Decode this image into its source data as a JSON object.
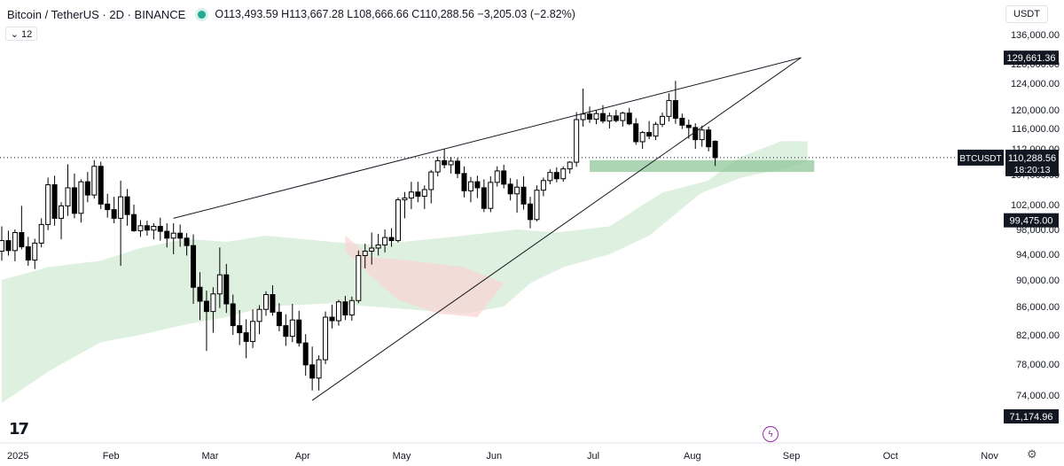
{
  "header": {
    "symbol": "Bitcoin / TetherUS · 2D · BINANCE",
    "ohlc": "O113,493.59 H113,667.28 L108,666.66 C110,288.56 −3,205.03 (−2.82%)",
    "indicator_badge": "⌄ 12",
    "currency_button": "USDT"
  },
  "colors": {
    "up_candle": "#ffffff",
    "down_candle": "#000000",
    "cloud_bull": "#c8e6c9",
    "cloud_bear": "#fbd3d3",
    "support_zone": "#8fc79a",
    "live_dot": "#22ab94",
    "event_icon": "#9c27b0"
  },
  "icons": [
    "tradingview-logo-icon",
    "settings-gear-icon",
    "flash-event-icon"
  ],
  "chart_data": {
    "type": "candlestick",
    "x_ticks": [
      "2025",
      "Feb",
      "Mar",
      "Apr",
      "May",
      "Jun",
      "Jul",
      "Aug",
      "Sep",
      "Oct",
      "Nov"
    ],
    "y_ticks": [
      "136,000.00",
      "128,000.00",
      "124,000.00",
      "120,000.00",
      "116,000.00",
      "112,000.00",
      "107,000.00",
      "102,000.00",
      "98,000.00",
      "94,000.00",
      "90,000.00",
      "86,000.00",
      "82,000.00",
      "78,000.00",
      "74,000.00"
    ],
    "y_ticks_values": [
      136000,
      128000,
      124000,
      120000,
      116000,
      112000,
      107000,
      102000,
      98000,
      94000,
      90000,
      86000,
      82000,
      78000,
      74000
    ],
    "ylim": [
      70000,
      138000
    ],
    "price_labels": [
      {
        "text": "129,661.36",
        "value": 129661.36
      },
      {
        "text": "99,475.00",
        "value": 99475
      },
      {
        "text": "71,174.96",
        "value": 71174.96
      }
    ],
    "last_price": {
      "symbol": "BTCUSDT",
      "value_text": "110,288.56",
      "countdown": "18:20:13",
      "value": 110288.56
    },
    "candles": [
      [
        94500,
        98500,
        93000,
        96200
      ],
      [
        96200,
        97800,
        93800,
        94600
      ],
      [
        94600,
        98000,
        92900,
        97500
      ],
      [
        97500,
        101800,
        94800,
        95200
      ],
      [
        95200,
        96800,
        92200,
        93100
      ],
      [
        93100,
        96500,
        91700,
        95800
      ],
      [
        95800,
        99800,
        95100,
        98800
      ],
      [
        98800,
        106500,
        97900,
        105300
      ],
      [
        105300,
        106800,
        98600,
        99800
      ],
      [
        99800,
        102400,
        96400,
        101800
      ],
      [
        101800,
        109000,
        100200,
        104800
      ],
      [
        104800,
        107200,
        99800,
        100600
      ],
      [
        100600,
        106200,
        99100,
        105800
      ],
      [
        105800,
        107500,
        102400,
        103600
      ],
      [
        103600,
        109800,
        103000,
        108600
      ],
      [
        108600,
        109500,
        101300,
        102100
      ],
      [
        102100,
        103800,
        99900,
        101200
      ],
      [
        101200,
        103300,
        99000,
        99800
      ],
      [
        99800,
        106000,
        92200,
        103300
      ],
      [
        103300,
        104600,
        98600,
        100400
      ],
      [
        100400,
        102000,
        97600,
        97800
      ],
      [
        97800,
        99500,
        96800,
        98600
      ],
      [
        98600,
        99400,
        97000,
        97900
      ],
      [
        97900,
        99000,
        96400,
        98500
      ],
      [
        98500,
        99900,
        96200,
        97700
      ],
      [
        97700,
        99000,
        95100,
        96600
      ],
      [
        96600,
        99000,
        94000,
        97400
      ],
      [
        97400,
        98800,
        95200,
        96600
      ],
      [
        96600,
        97400,
        93800,
        95400
      ],
      [
        95400,
        97200,
        86400,
        88900
      ],
      [
        88900,
        91200,
        84100,
        86800
      ],
      [
        86800,
        88400,
        79800,
        85300
      ],
      [
        85300,
        88900,
        82300,
        87900
      ],
      [
        87900,
        95100,
        85800,
        90800
      ],
      [
        90800,
        92500,
        85100,
        86400
      ],
      [
        86400,
        87800,
        82000,
        83300
      ],
      [
        83300,
        85500,
        80600,
        82300
      ],
      [
        82300,
        84200,
        78800,
        81100
      ],
      [
        81100,
        85600,
        80200,
        83900
      ],
      [
        83900,
        86200,
        82100,
        85600
      ],
      [
        85600,
        88300,
        84700,
        87800
      ],
      [
        87800,
        89200,
        84700,
        85200
      ],
      [
        85200,
        86500,
        82500,
        83300
      ],
      [
        83300,
        84900,
        80500,
        81800
      ],
      [
        81800,
        86400,
        81000,
        84100
      ],
      [
        84100,
        85400,
        80400,
        80900
      ],
      [
        80900,
        82100,
        76500,
        77900
      ],
      [
        77900,
        80400,
        74600,
        76200
      ],
      [
        76200,
        79200,
        74600,
        78600
      ],
      [
        78600,
        85300,
        78000,
        84500
      ],
      [
        84500,
        86300,
        82900,
        84000
      ],
      [
        84000,
        87000,
        83300,
        86700
      ],
      [
        86700,
        87600,
        84100,
        84800
      ],
      [
        84800,
        87500,
        84000,
        86900
      ],
      [
        86900,
        94600,
        86500,
        93800
      ],
      [
        93800,
        95700,
        91800,
        94500
      ],
      [
        94500,
        97500,
        92400,
        95000
      ],
      [
        95000,
        97300,
        93800,
        95500
      ],
      [
        95500,
        98000,
        94300,
        96700
      ],
      [
        96700,
        98200,
        95200,
        96200
      ],
      [
        96200,
        103200,
        95900,
        102800
      ],
      [
        102800,
        104100,
        99800,
        103100
      ],
      [
        103100,
        105800,
        101300,
        104100
      ],
      [
        104100,
        105800,
        102400,
        103400
      ],
      [
        103400,
        105200,
        101300,
        104500
      ],
      [
        104500,
        107900,
        102200,
        107500
      ],
      [
        107500,
        110500,
        106700,
        109700
      ],
      [
        109700,
        112000,
        108200,
        108900
      ],
      [
        108900,
        110400,
        107200,
        109600
      ],
      [
        109600,
        110200,
        106400,
        107200
      ],
      [
        107200,
        108600,
        103200,
        104300
      ],
      [
        104300,
        106600,
        102400,
        105800
      ],
      [
        105800,
        106800,
        103100,
        104800
      ],
      [
        104800,
        106200,
        100800,
        101400
      ],
      [
        101400,
        106700,
        100800,
        105700
      ],
      [
        105700,
        108600,
        105000,
        107700
      ],
      [
        107700,
        108900,
        104700,
        105400
      ],
      [
        105400,
        106400,
        102700,
        103800
      ],
      [
        103800,
        106200,
        100700,
        104900
      ],
      [
        104900,
        106700,
        101200,
        102100
      ],
      [
        102100,
        103300,
        98200,
        99600
      ],
      [
        99600,
        105200,
        99300,
        104400
      ],
      [
        104400,
        106500,
        103400,
        106000
      ],
      [
        106000,
        108000,
        105400,
        107400
      ],
      [
        107400,
        108400,
        105700,
        106300
      ],
      [
        106300,
        108600,
        105800,
        108100
      ],
      [
        108100,
        109600,
        107200,
        109400
      ],
      [
        109400,
        119500,
        108500,
        117900
      ],
      [
        117900,
        123200,
        116400,
        119100
      ],
      [
        119100,
        120500,
        117200,
        118000
      ],
      [
        118000,
        119900,
        116900,
        119200
      ],
      [
        119200,
        120700,
        117100,
        117600
      ],
      [
        117600,
        119400,
        116000,
        118700
      ],
      [
        118700,
        120000,
        117300,
        117700
      ],
      [
        117700,
        119600,
        116400,
        119300
      ],
      [
        119300,
        120300,
        116700,
        117000
      ],
      [
        117000,
        118200,
        112800,
        113400
      ],
      [
        113400,
        115500,
        112000,
        115200
      ],
      [
        115200,
        117600,
        113900,
        114500
      ],
      [
        114500,
        117400,
        113700,
        116900
      ],
      [
        116900,
        119400,
        116300,
        118600
      ],
      [
        118600,
        122500,
        117500,
        121400
      ],
      [
        121400,
        124500,
        117000,
        118200
      ],
      [
        118200,
        119200,
        115900,
        116700
      ],
      [
        116700,
        117900,
        114000,
        116200
      ],
      [
        116200,
        117100,
        112000,
        113800
      ],
      [
        113800,
        116600,
        112400,
        115700
      ],
      [
        115700,
        116400,
        111500,
        112400
      ],
      [
        113493.59,
        113667.28,
        108666.66,
        110288.56
      ]
    ],
    "cloud_a": [
      [
        0,
        90000
      ],
      [
        7,
        92000
      ],
      [
        15,
        93000
      ],
      [
        21,
        95000
      ],
      [
        28,
        96500
      ],
      [
        34,
        96000
      ],
      [
        40,
        97000
      ],
      [
        50,
        96000
      ],
      [
        56,
        95500
      ],
      [
        70,
        97000
      ],
      [
        78,
        98000
      ],
      [
        84,
        97500
      ],
      [
        92,
        98500
      ],
      [
        100,
        104000
      ],
      [
        107,
        106000
      ],
      [
        112,
        110500
      ],
      [
        118,
        113500
      ],
      [
        122,
        113500
      ]
    ],
    "cloud_b": [
      [
        0,
        73000
      ],
      [
        7,
        77000
      ],
      [
        15,
        81000
      ],
      [
        21,
        82000
      ],
      [
        28,
        83500
      ],
      [
        34,
        84500
      ],
      [
        40,
        86000
      ],
      [
        50,
        86500
      ],
      [
        56,
        86000
      ],
      [
        70,
        85000
      ],
      [
        76,
        86000
      ],
      [
        80,
        89500
      ],
      [
        85,
        92000
      ],
      [
        92,
        94000
      ],
      [
        98,
        97000
      ],
      [
        106,
        104000
      ],
      [
        112,
        106500
      ],
      [
        118,
        108000
      ],
      [
        122,
        109500
      ]
    ],
    "trendlines": [
      {
        "from": [
          26,
          99800
        ],
        "to": [
          121,
          129661
        ]
      },
      {
        "from": [
          47,
          73300
        ],
        "to": [
          121,
          129661
        ]
      }
    ],
    "support_zone": {
      "x_from": 89,
      "x_to": 123,
      "y_from": 107500,
      "y_to": 109800
    },
    "x_label_positions": {
      "2025": 0,
      "Feb": 16,
      "Mar": 31,
      "Apr": 45,
      "May": 60,
      "Jun": 74,
      "Jul": 89,
      "Aug": 104,
      "Sep": 119,
      "Oct": 134,
      "Nov": 149
    }
  }
}
